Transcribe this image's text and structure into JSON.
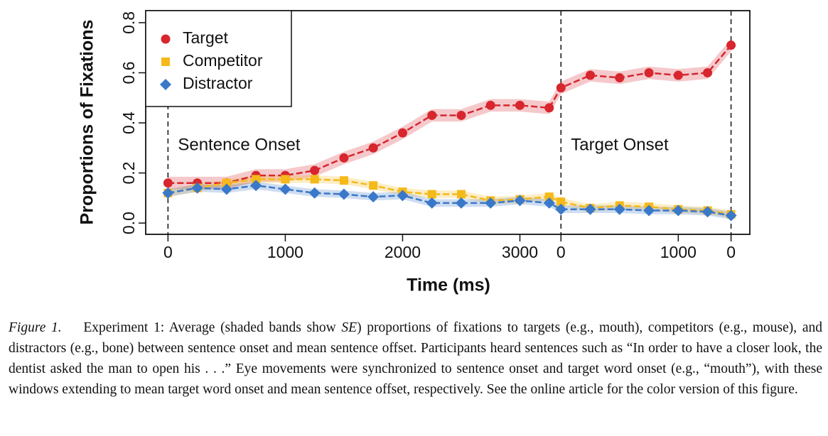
{
  "chart_data": {
    "type": "line",
    "xlabel": "Time (ms)",
    "ylabel": "Proportions of Fixations",
    "x": [
      0,
      250,
      500,
      750,
      1000,
      1250,
      1500,
      1750,
      2000,
      2250,
      2500,
      2750,
      3000,
      3250,
      3350,
      3600,
      3850,
      4100,
      4350,
      4600,
      4800
    ],
    "series": [
      {
        "name": "Target",
        "color": "#d7262e",
        "marker": "circle",
        "se": 0.025,
        "values": [
          0.16,
          0.16,
          0.16,
          0.19,
          0.19,
          0.21,
          0.26,
          0.3,
          0.36,
          0.43,
          0.43,
          0.47,
          0.47,
          0.46,
          0.54,
          0.59,
          0.58,
          0.6,
          0.59,
          0.6,
          0.71
        ]
      },
      {
        "name": "Competitor",
        "color": "#f5b91a",
        "marker": "square",
        "se": 0.015,
        "values": [
          0.12,
          0.14,
          0.16,
          0.175,
          0.175,
          0.175,
          0.17,
          0.15,
          0.125,
          0.115,
          0.115,
          0.09,
          0.095,
          0.105,
          0.085,
          0.06,
          0.07,
          0.065,
          0.055,
          0.05,
          0.035
        ]
      },
      {
        "name": "Distractor",
        "color": "#3a78c9",
        "marker": "diamond",
        "se": 0.015,
        "values": [
          0.12,
          0.14,
          0.135,
          0.15,
          0.135,
          0.12,
          0.115,
          0.105,
          0.11,
          0.08,
          0.08,
          0.08,
          0.09,
          0.08,
          0.055,
          0.055,
          0.055,
          0.05,
          0.05,
          0.045,
          0.03
        ]
      }
    ],
    "xlim": [
      -190,
      4960
    ],
    "ylim": [
      -0.045,
      0.848
    ],
    "xticks": [
      0,
      1000,
      2000,
      3000,
      {
        "value": 3350,
        "label": "0"
      },
      {
        "value": 4350,
        "label": "1000"
      },
      {
        "value": 4800,
        "label": "0"
      }
    ],
    "yticks": [
      {
        "value": 0,
        "label": "0.0"
      },
      0.2,
      0.4,
      0.6,
      0.8
    ],
    "vlines": [
      0,
      3350,
      4800
    ],
    "annotations": [
      "Sentence Onset",
      "Target Onset"
    ],
    "legend": "upper left"
  },
  "caption": {
    "label": "Figure 1.",
    "parts": [
      "Experiment 1: Average (shaded bands show ",
      "SE",
      ") proportions of fixations to targets (e.g., mouth), competitors (e.g., mouse), and distractors (e.g., bone) between sentence onset and mean sentence offset. Participants heard sentences such as “In order to have a closer look, the dentist asked the man to open his . . .” Eye movements were synchronized to sentence onset and target word onset (e.g., “mouth”), with these windows extending to mean target word onset and mean sentence offset, respectively. See the online article for the color version of this figure."
    ]
  }
}
